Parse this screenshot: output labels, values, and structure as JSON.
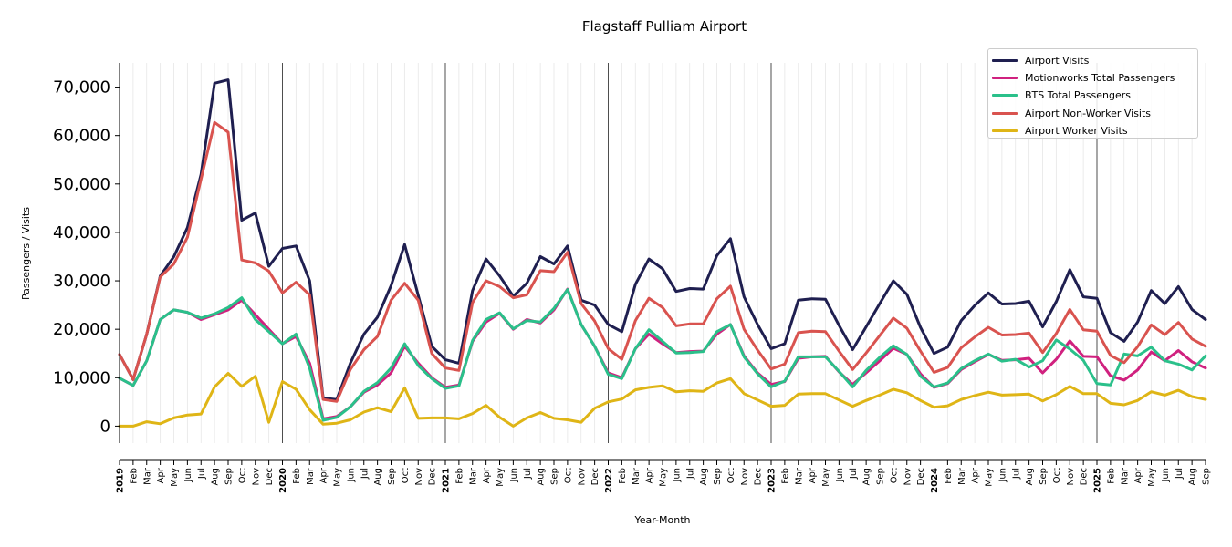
{
  "chart_data": {
    "type": "line",
    "title": "Flagstaff Pulliam Airport",
    "xlabel": "Year-Month",
    "ylabel": "Passengers / Visits",
    "ylim": [
      -3500,
      75000
    ],
    "yticks": [
      0,
      10000,
      20000,
      30000,
      40000,
      50000,
      60000,
      70000
    ],
    "ytick_labels": [
      "0",
      "10,000",
      "20,000",
      "30,000",
      "40,000",
      "50,000",
      "60,000",
      "70,000"
    ],
    "grid": "vertical monthly lines; darker lines at year starts",
    "legend_position": "top-right",
    "months": [
      "2019",
      "Feb",
      "Mar",
      "Apr",
      "May",
      "Jun",
      "Jul",
      "Aug",
      "Sep",
      "Oct",
      "Nov",
      "Dec",
      "2020",
      "Feb",
      "Mar",
      "Apr",
      "May",
      "Jun",
      "Jul",
      "Aug",
      "Sep",
      "Oct",
      "Nov",
      "Dec",
      "2021",
      "Feb",
      "Mar",
      "Apr",
      "May",
      "Jun",
      "Jul",
      "Aug",
      "Sep",
      "Oct",
      "Nov",
      "Dec",
      "2022",
      "Feb",
      "Mar",
      "Apr",
      "May",
      "Jun",
      "Jul",
      "Aug",
      "Sep",
      "Oct",
      "Nov",
      "Dec",
      "2023",
      "Feb",
      "Mar",
      "Apr",
      "May",
      "Jun",
      "Jul",
      "Aug",
      "Sep",
      "Oct",
      "Nov",
      "Dec",
      "2024",
      "Feb",
      "Mar",
      "Apr",
      "May",
      "Jun",
      "Jul",
      "Aug",
      "Sep",
      "Oct",
      "Nov",
      "Dec",
      "2025",
      "Feb",
      "Mar",
      "Apr",
      "May",
      "Jun",
      "Jul",
      "Aug",
      "Sep"
    ],
    "series": [
      {
        "name": "Airport Visits",
        "color": "#1f1f50",
        "values": [
          14800,
          9600,
          19000,
          31000,
          35000,
          41000,
          52000,
          70800,
          71500,
          42500,
          44000,
          33000,
          36700,
          37200,
          30000,
          5800,
          5500,
          13000,
          19000,
          22500,
          29000,
          37500,
          27000,
          16500,
          13700,
          13000,
          28000,
          34500,
          31000,
          26800,
          29500,
          35000,
          33500,
          37200,
          26000,
          25000,
          21000,
          19500,
          29300,
          34500,
          32500,
          27800,
          28400,
          28300,
          35200,
          38700,
          26700,
          21000,
          16000,
          17000,
          26000,
          26300,
          26200,
          20800,
          15800,
          20500,
          25300,
          30000,
          27200,
          20400,
          15000,
          16300,
          21800,
          24900,
          27500,
          25200,
          25300,
          25800,
          20500,
          25700,
          32300,
          26700,
          26400,
          19300,
          17500,
          21500,
          28000,
          25300,
          28800,
          24100,
          22000
        ]
      },
      {
        "name": "Motionworks Total Passengers",
        "color": "#d0217f",
        "values": [
          9900,
          8400,
          13500,
          22000,
          24000,
          23500,
          22000,
          23000,
          24000,
          26000,
          23000,
          20000,
          17000,
          18500,
          13000,
          1500,
          2000,
          4000,
          7000,
          8500,
          11000,
          16500,
          13000,
          10000,
          8000,
          8500,
          17500,
          21500,
          23300,
          20000,
          22000,
          21300,
          24000,
          28300,
          21000,
          16500,
          11000,
          10000,
          16000,
          19000,
          17000,
          15200,
          15400,
          15500,
          19000,
          21000,
          14500,
          11000,
          8600,
          9200,
          14000,
          14300,
          14400,
          11200,
          8600,
          11000,
          13500,
          16100,
          14800,
          10800,
          8000,
          8800,
          11700,
          13300,
          14800,
          13600,
          13700,
          14000,
          11000,
          13800,
          17600,
          14400,
          14300,
          10400,
          9500,
          11600,
          15300,
          13500,
          15600,
          13300,
          12000
        ]
      },
      {
        "name": "BTS Total Passengers",
        "color": "#2ac08a",
        "values": [
          9900,
          8400,
          13500,
          22000,
          24000,
          23500,
          22300,
          23200,
          24500,
          26500,
          22000,
          19500,
          17000,
          19000,
          12000,
          1200,
          1800,
          4000,
          7200,
          9000,
          12000,
          17000,
          12500,
          9800,
          7800,
          8300,
          17700,
          22000,
          23400,
          20100,
          21800,
          21500,
          24300,
          28200,
          21000,
          16500,
          10700,
          9800,
          16000,
          19900,
          17500,
          15100,
          15200,
          15400,
          19500,
          21000,
          14300,
          10800,
          8100,
          9300,
          14300,
          14300,
          14300,
          11300,
          8100,
          11500,
          14200,
          16600,
          14800,
          10300,
          8100,
          8900,
          11900,
          13500,
          14900,
          13400,
          13800,
          12200,
          13500,
          17800,
          15900,
          13600,
          8800,
          8500,
          14900,
          14500,
          16300,
          13500,
          12800,
          11600,
          14500
        ]
      },
      {
        "name": "Airport Non-Worker Visits",
        "color": "#d9534f",
        "values": [
          14800,
          9600,
          19000,
          30800,
          33500,
          39000,
          51000,
          62700,
          60700,
          34300,
          33700,
          32000,
          27500,
          29700,
          27100,
          5500,
          5100,
          11700,
          15800,
          18500,
          26000,
          29500,
          26000,
          15000,
          12000,
          11500,
          25500,
          30000,
          28800,
          26500,
          27100,
          32100,
          31900,
          35900,
          25300,
          21700,
          16000,
          13800,
          21800,
          26400,
          24500,
          20700,
          21100,
          21100,
          26300,
          28900,
          20000,
          15700,
          11800,
          12800,
          19300,
          19600,
          19500,
          15500,
          11700,
          15100,
          18700,
          22300,
          20200,
          15500,
          11100,
          12100,
          16200,
          18400,
          20400,
          18800,
          18900,
          19200,
          15200,
          19100,
          24100,
          19900,
          19600,
          14600,
          13100,
          16400,
          20900,
          18900,
          21400,
          18000,
          16500
        ]
      },
      {
        "name": "Airport Worker Visits",
        "color": "#dfb516",
        "values": [
          0,
          0,
          900,
          500,
          1700,
          2300,
          2500,
          8100,
          10900,
          8200,
          10300,
          800,
          9200,
          7600,
          3400,
          400,
          600,
          1300,
          2900,
          3800,
          3000,
          7900,
          1600,
          1700,
          1700,
          1500,
          2600,
          4300,
          1800,
          0,
          1700,
          2800,
          1600,
          1300,
          800,
          3700,
          5000,
          5600,
          7500,
          8000,
          8300,
          7100,
          7300,
          7200,
          8900,
          9800,
          6700,
          5400,
          4100,
          4300,
          6600,
          6700,
          6700,
          5400,
          4100,
          5300,
          6400,
          7600,
          6900,
          5300,
          3900,
          4200,
          5500,
          6300,
          7000,
          6400,
          6500,
          6600,
          5200,
          6500,
          8200,
          6700,
          6700,
          4700,
          4400,
          5300,
          7100,
          6400,
          7400,
          6100,
          5500
        ]
      }
    ]
  }
}
